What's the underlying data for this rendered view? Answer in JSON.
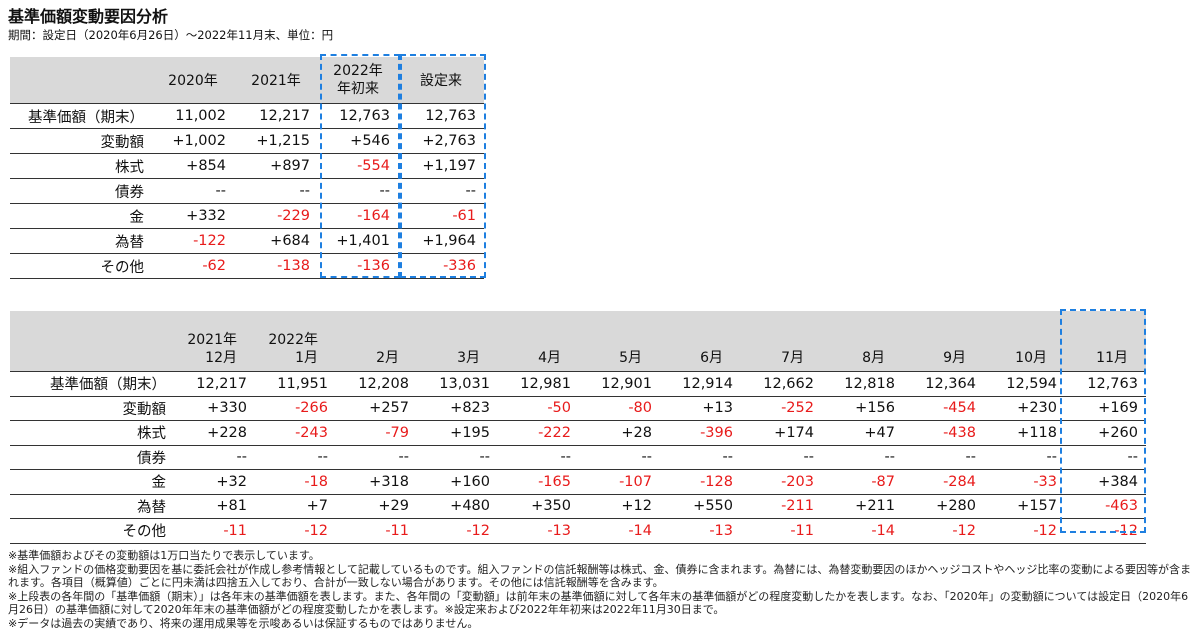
{
  "title": "基準価額変動要因分析",
  "subtitle": "期間：設定日（2020年6月26日）～2022年11月末、単位：円",
  "table1": {
    "headers": [
      "",
      "2020年",
      "2021年",
      "2022年\n年初来",
      "設定来"
    ],
    "rows": [
      {
        "label": "基準価額（期末）",
        "indent": false,
        "values": [
          "11,002",
          "12,217",
          "12,763",
          "12,763"
        ]
      },
      {
        "label": "変動額",
        "indent": false,
        "values": [
          "+1,002",
          "+1,215",
          "+546",
          "+2,763"
        ]
      },
      {
        "label": "株式",
        "indent": true,
        "values": [
          "+854",
          "+897",
          "-554",
          "+1,197"
        ]
      },
      {
        "label": "債券",
        "indent": true,
        "values": [
          "--",
          "--",
          "--",
          "--"
        ]
      },
      {
        "label": "金",
        "indent": true,
        "values": [
          "+332",
          "-229",
          "-164",
          "-61"
        ]
      },
      {
        "label": "為替",
        "indent": true,
        "values": [
          "-122",
          "+684",
          "+1,401",
          "+1,964"
        ]
      },
      {
        "label": "その他",
        "indent": true,
        "values": [
          "-62",
          "-138",
          "-136",
          "-336"
        ]
      }
    ]
  },
  "table2": {
    "headers": [
      "",
      "2021年\n12月",
      "2022年\n1月",
      "2月",
      "3月",
      "4月",
      "5月",
      "6月",
      "7月",
      "8月",
      "9月",
      "10月",
      "11月"
    ],
    "rows": [
      {
        "label": "基準価額（期末）",
        "indent": false,
        "values": [
          "12,217",
          "11,951",
          "12,208",
          "13,031",
          "12,981",
          "12,901",
          "12,914",
          "12,662",
          "12,818",
          "12,364",
          "12,594",
          "12,763"
        ]
      },
      {
        "label": "変動額",
        "indent": false,
        "values": [
          "+330",
          "-266",
          "+257",
          "+823",
          "-50",
          "-80",
          "+13",
          "-252",
          "+156",
          "-454",
          "+230",
          "+169"
        ]
      },
      {
        "label": "株式",
        "indent": true,
        "values": [
          "+228",
          "-243",
          "-79",
          "+195",
          "-222",
          "+28",
          "-396",
          "+174",
          "+47",
          "-438",
          "+118",
          "+260"
        ]
      },
      {
        "label": "債券",
        "indent": true,
        "values": [
          "--",
          "--",
          "--",
          "--",
          "--",
          "--",
          "--",
          "--",
          "--",
          "--",
          "--",
          "--"
        ]
      },
      {
        "label": "金",
        "indent": true,
        "values": [
          "+32",
          "-18",
          "+318",
          "+160",
          "-165",
          "-107",
          "-128",
          "-203",
          "-87",
          "-284",
          "-33",
          "+384"
        ]
      },
      {
        "label": "為替",
        "indent": true,
        "values": [
          "+81",
          "+7",
          "+29",
          "+480",
          "+350",
          "+12",
          "+550",
          "-211",
          "+211",
          "+280",
          "+157",
          "-463"
        ]
      },
      {
        "label": "その他",
        "indent": true,
        "values": [
          "-11",
          "-12",
          "-11",
          "-12",
          "-13",
          "-14",
          "-13",
          "-11",
          "-14",
          "-12",
          "-12",
          "-12"
        ]
      }
    ]
  },
  "notes": [
    "※基準価額およびその変動額は1万口当たりで表示しています。",
    "※組入ファンドの価格変動要因を基に委託会社が作成し参考情報として記載しているものです。組入ファンドの信託報酬等は株式、金、債券に含まれます。為替には、為替変動要因のほかヘッジコストやヘッジ比率の変動による要因等が含まれます。各項目（概算値）ごとに円未満は四捨五入しており、合計が一致しない場合があります。その他には信託報酬等を含みます。",
    "※上段表の各年間の「基準価額（期末）」は各年末の基準価額を表します。また、各年間の「変動額」は前年末の基準価額に対して各年末の基準価額がどの程度変動したかを表します。なお、「2020年」の変動額については設定日（2020年6月26日）の基準価額に対して2020年年末の基準価額がどの程度変動したかを表します。※設定来および2022年年初来は2022年11月30日まで。",
    "※データは過去の実績であり、将来の運用成果等を示唆あるいは保証するものではありません。"
  ],
  "colors": {
    "negative": "#e81b1b",
    "highlight": "#1e7fe0",
    "header_bg": "#d9d9d9"
  }
}
